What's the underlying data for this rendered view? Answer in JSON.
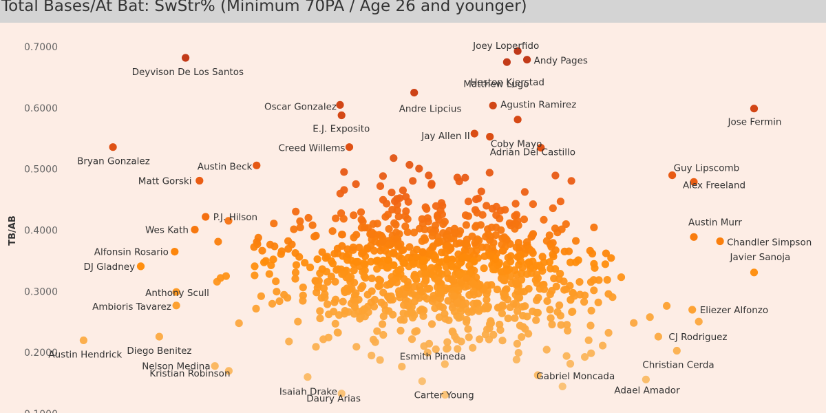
{
  "chart_data": {
    "type": "scatter",
    "title": "Total Bases/At Bat: SwStr% (Minimum 70PA / Age 26 and younger)",
    "ylabel": "TB/AB",
    "xlabel": "",
    "ylim": [
      0.1,
      0.7
    ],
    "yticks": [
      "0.1000",
      "0.2000",
      "0.3000",
      "0.4000",
      "0.5000",
      "0.6000",
      "0.7000"
    ],
    "grid": false,
    "labeled_points": [
      {
        "name": "Deyvison De Los Santos",
        "x": 0.18,
        "y": 0.682
      },
      {
        "name": "Joey Loperfido",
        "x": 0.395,
        "y": 0.693
      },
      {
        "name": "Andy Pages",
        "x": 0.401,
        "y": 0.679
      },
      {
        "name": "Heston Kjerstad",
        "x": 0.388,
        "y": 0.675
      },
      {
        "name": "Matthew Lugo",
        "x": 0.379,
        "y": 0.604
      },
      {
        "name": "Andre Lipcius",
        "x": 0.328,
        "y": 0.625
      },
      {
        "name": "Oscar Gonzalez",
        "x": 0.28,
        "y": 0.605
      },
      {
        "name": "Agustin Ramirez",
        "x": 0.395,
        "y": 0.581
      },
      {
        "name": "Jose Fermin",
        "x": 0.548,
        "y": 0.599
      },
      {
        "name": "E.J. Exposito",
        "x": 0.281,
        "y": 0.588
      },
      {
        "name": "Jay Allen II",
        "x": 0.367,
        "y": 0.558
      },
      {
        "name": "Coby Mayo",
        "x": 0.377,
        "y": 0.553
      },
      {
        "name": "Creed Willems",
        "x": 0.286,
        "y": 0.536
      },
      {
        "name": "Adrian Del Castillo",
        "x": 0.41,
        "y": 0.535
      },
      {
        "name": "Bryan Gonzalez",
        "x": 0.133,
        "y": 0.536
      },
      {
        "name": "Austin Beck",
        "x": 0.226,
        "y": 0.506
      },
      {
        "name": "Guy Lipscomb",
        "x": 0.495,
        "y": 0.49
      },
      {
        "name": "Matt Gorski",
        "x": 0.189,
        "y": 0.481
      },
      {
        "name": "Alex Freeland",
        "x": 0.509,
        "y": 0.479
      },
      {
        "name": "P.J. Hilson",
        "x": 0.193,
        "y": 0.422
      },
      {
        "name": "Wes Kath",
        "x": 0.186,
        "y": 0.401
      },
      {
        "name": "Austin Murr",
        "x": 0.509,
        "y": 0.389
      },
      {
        "name": "Chandler Simpson",
        "x": 0.526,
        "y": 0.382
      },
      {
        "name": "Alfonsin Rosario",
        "x": 0.173,
        "y": 0.365
      },
      {
        "name": "Javier Sanoja",
        "x": 0.548,
        "y": 0.331
      },
      {
        "name": "DJ Gladney",
        "x": 0.151,
        "y": 0.341
      },
      {
        "name": "Anthony Scull",
        "x": 0.174,
        "y": 0.299
      },
      {
        "name": "Ambioris Tavarez",
        "x": 0.174,
        "y": 0.277
      },
      {
        "name": "Eliezer Alfonzo",
        "x": 0.508,
        "y": 0.27
      },
      {
        "name": "Austin Hendrick",
        "x": 0.114,
        "y": 0.22
      },
      {
        "name": "Diego Benitez",
        "x": 0.163,
        "y": 0.226
      },
      {
        "name": "CJ Rodriguez",
        "x": 0.486,
        "y": 0.226
      },
      {
        "name": "Christian Cerda",
        "x": 0.498,
        "y": 0.203
      },
      {
        "name": "Nelson Medina",
        "x": 0.199,
        "y": 0.178
      },
      {
        "name": "Kristian Robinson",
        "x": 0.208,
        "y": 0.17
      },
      {
        "name": "Esmith Pineda",
        "x": 0.32,
        "y": 0.177
      },
      {
        "name": "Isaiah Drake",
        "x": 0.259,
        "y": 0.16
      },
      {
        "name": "Gabriel Moncada",
        "x": 0.408,
        "y": 0.163
      },
      {
        "name": "Adael Amador",
        "x": 0.478,
        "y": 0.156
      },
      {
        "name": "Daury Arias",
        "x": 0.281,
        "y": 0.133
      },
      {
        "name": "Carter Young",
        "x": 0.348,
        "y": 0.131
      }
    ]
  }
}
